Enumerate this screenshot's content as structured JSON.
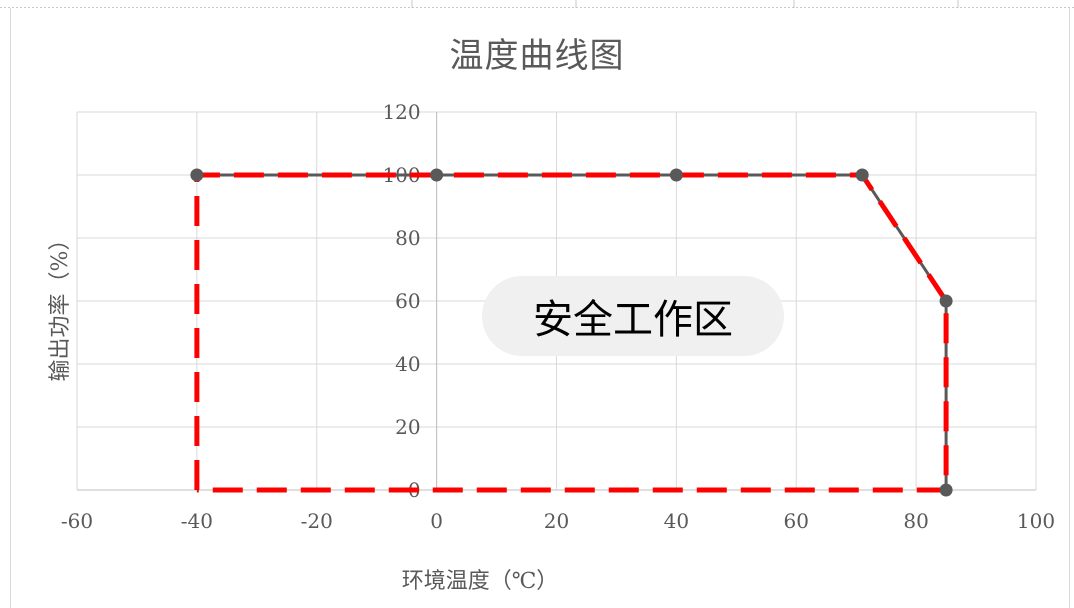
{
  "chart_data": {
    "type": "scatter",
    "title": "温度曲线图",
    "xlabel": "环境温度（℃）",
    "ylabel": "输出功率（%）",
    "xlim": [
      -60,
      100
    ],
    "ylim": [
      0,
      120
    ],
    "x_ticks": [
      "-60",
      "-40",
      "-20",
      "0",
      "20",
      "40",
      "60",
      "80",
      "100"
    ],
    "y_ticks": [
      "0",
      "20",
      "40",
      "60",
      "80",
      "100",
      "120"
    ],
    "grid": true,
    "series": [
      {
        "x": [
          -40,
          0,
          40,
          71,
          85,
          85
        ],
        "y": [
          100,
          100,
          100,
          100,
          60,
          0
        ],
        "color": "#595959"
      }
    ],
    "safe_zone": {
      "label": "安全工作区",
      "x": [
        -40,
        -40,
        71,
        85,
        85,
        -40
      ],
      "y": [
        0,
        100,
        100,
        60,
        0,
        0
      ],
      "color": "#ff0000"
    }
  }
}
